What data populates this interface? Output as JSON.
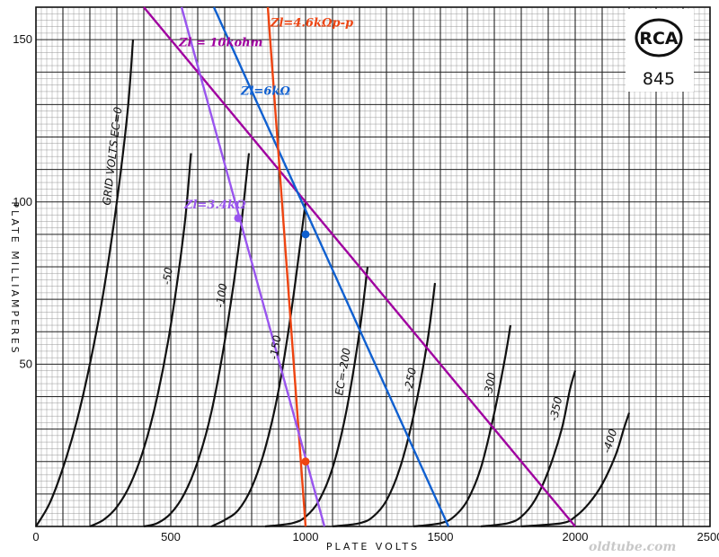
{
  "chart_data": {
    "type": "line",
    "xlabel": "PLATE VOLTS",
    "ylabel": "PLATE MILLIAMPERES",
    "xlim": [
      0,
      2500
    ],
    "ylim": [
      0,
      160
    ],
    "x_ticks": [
      "0",
      "500",
      "1000",
      "1500",
      "2000",
      "2500"
    ],
    "y_ticks": [
      "50",
      "100",
      "150"
    ],
    "grid": true,
    "logo": {
      "brand": "RCA",
      "model": "845"
    },
    "watermark": "oldtube.com",
    "curves": [
      {
        "label": "GRID VOLTS  EC=0",
        "points": [
          [
            0,
            0
          ],
          [
            50,
            7
          ],
          [
            100,
            18
          ],
          [
            150,
            32
          ],
          [
            200,
            50
          ],
          [
            250,
            72
          ],
          [
            300,
            100
          ],
          [
            340,
            128
          ],
          [
            360,
            150
          ]
        ]
      },
      {
        "label": "-50",
        "points": [
          [
            200,
            0
          ],
          [
            250,
            2
          ],
          [
            300,
            6
          ],
          [
            350,
            13
          ],
          [
            400,
            24
          ],
          [
            450,
            40
          ],
          [
            500,
            62
          ],
          [
            550,
            92
          ],
          [
            575,
            115
          ]
        ]
      },
      {
        "label": "-100",
        "points": [
          [
            400,
            0
          ],
          [
            450,
            1
          ],
          [
            500,
            4
          ],
          [
            550,
            10
          ],
          [
            600,
            20
          ],
          [
            650,
            35
          ],
          [
            700,
            57
          ],
          [
            750,
            85
          ],
          [
            790,
            115
          ]
        ]
      },
      {
        "label": "-150",
        "points": [
          [
            650,
            0
          ],
          [
            700,
            2
          ],
          [
            750,
            5
          ],
          [
            800,
            12
          ],
          [
            850,
            24
          ],
          [
            900,
            42
          ],
          [
            950,
            68
          ],
          [
            1000,
            100
          ]
        ]
      },
      {
        "label": "EC=-200",
        "points": [
          [
            850,
            0
          ],
          [
            950,
            1
          ],
          [
            1000,
            3
          ],
          [
            1050,
            8
          ],
          [
            1100,
            18
          ],
          [
            1150,
            35
          ],
          [
            1200,
            60
          ],
          [
            1230,
            80
          ]
        ]
      },
      {
        "label": "-250",
        "points": [
          [
            1100,
            0
          ],
          [
            1200,
            1
          ],
          [
            1250,
            3
          ],
          [
            1300,
            8
          ],
          [
            1350,
            18
          ],
          [
            1400,
            34
          ],
          [
            1450,
            56
          ],
          [
            1480,
            75
          ]
        ]
      },
      {
        "label": "-300",
        "points": [
          [
            1400,
            0
          ],
          [
            1500,
            1
          ],
          [
            1550,
            3
          ],
          [
            1600,
            8
          ],
          [
            1650,
            18
          ],
          [
            1700,
            35
          ],
          [
            1740,
            52
          ],
          [
            1760,
            62
          ]
        ]
      },
      {
        "label": "-350",
        "points": [
          [
            1650,
            0
          ],
          [
            1750,
            1
          ],
          [
            1800,
            3
          ],
          [
            1850,
            8
          ],
          [
            1900,
            17
          ],
          [
            1950,
            30
          ],
          [
            1980,
            42
          ],
          [
            2000,
            48
          ]
        ]
      },
      {
        "label": "-400",
        "points": [
          [
            1800,
            0
          ],
          [
            1950,
            1
          ],
          [
            2000,
            3
          ],
          [
            2050,
            7
          ],
          [
            2100,
            13
          ],
          [
            2150,
            22
          ],
          [
            2180,
            30
          ],
          [
            2200,
            35
          ]
        ]
      }
    ],
    "load_lines": [
      {
        "label": "Zl = 10kohm",
        "color": "#a000a0",
        "x": [
          400,
          2000
        ],
        "y": [
          160,
          0
        ],
        "label_at": [
          530,
          148
        ]
      },
      {
        "label": "Zl=6kΩ",
        "color": "#1060d0",
        "x": [
          660,
          1530
        ],
        "y": [
          160,
          0
        ],
        "label_at": [
          760,
          133
        ]
      },
      {
        "label": "Zl=4.6kΩp-p",
        "color": "#ee4411",
        "x": [
          860,
          1000
        ],
        "y": [
          160,
          0
        ],
        "label_at": [
          870,
          154
        ]
      },
      {
        "label": "Zl=3.4kΩ",
        "color": "#9955ee",
        "x": [
          540,
          1070
        ],
        "y": [
          160,
          0
        ],
        "label_at": [
          550,
          98
        ]
      }
    ],
    "operating_points": [
      {
        "x": 750,
        "y": 95,
        "color": "#9955ee"
      },
      {
        "x": 1000,
        "y": 90,
        "color": "#1060d0"
      },
      {
        "x": 1000,
        "y": 20,
        "color": "#ee4411"
      }
    ]
  }
}
